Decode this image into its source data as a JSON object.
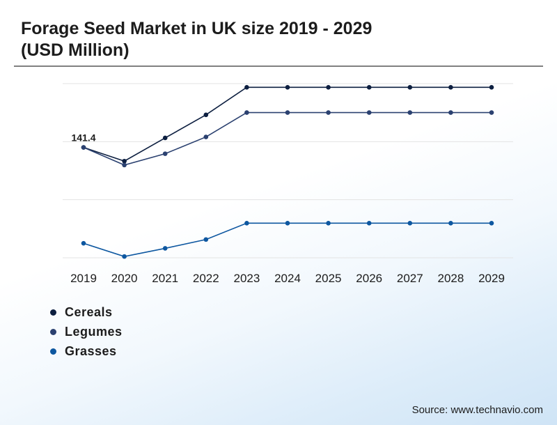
{
  "title_line1": "Forage Seed Market in UK size 2019 - 2029",
  "title_line2": "(USD Million)",
  "source": "Source: www.technavio.com",
  "chart_data": {
    "type": "line",
    "title": "Forage Seed Market in UK size 2019 - 2029 (USD Million)",
    "xlabel": "",
    "ylabel": "",
    "categories": [
      "2019",
      "2020",
      "2021",
      "2022",
      "2023",
      "2024",
      "2025",
      "2026",
      "2027",
      "2028",
      "2029"
    ],
    "series": [
      {
        "name": "Cereals",
        "color": "#0d1f40",
        "values": [
          141.4,
          128.8,
          150.1,
          171.3,
          196.6,
          196.6,
          196.6,
          196.6,
          196.6,
          196.6,
          196.6
        ]
      },
      {
        "name": "Legumes",
        "color": "#2b4170",
        "values": [
          141.4,
          125.2,
          135.6,
          151.0,
          173.4,
          173.4,
          173.4,
          173.4,
          173.4,
          173.4,
          173.4
        ]
      },
      {
        "name": "Grasses",
        "color": "#0d57a0",
        "values": [
          53.3,
          41.2,
          48.7,
          56.8,
          71.8,
          71.8,
          71.8,
          71.8,
          71.8,
          71.8,
          71.8
        ]
      }
    ],
    "annotations": [
      {
        "series": "Cereals",
        "category": "2019",
        "text": "141.4"
      }
    ],
    "ylim": [
      40,
      200
    ],
    "grid": true,
    "legend_position": "bottom-left"
  }
}
